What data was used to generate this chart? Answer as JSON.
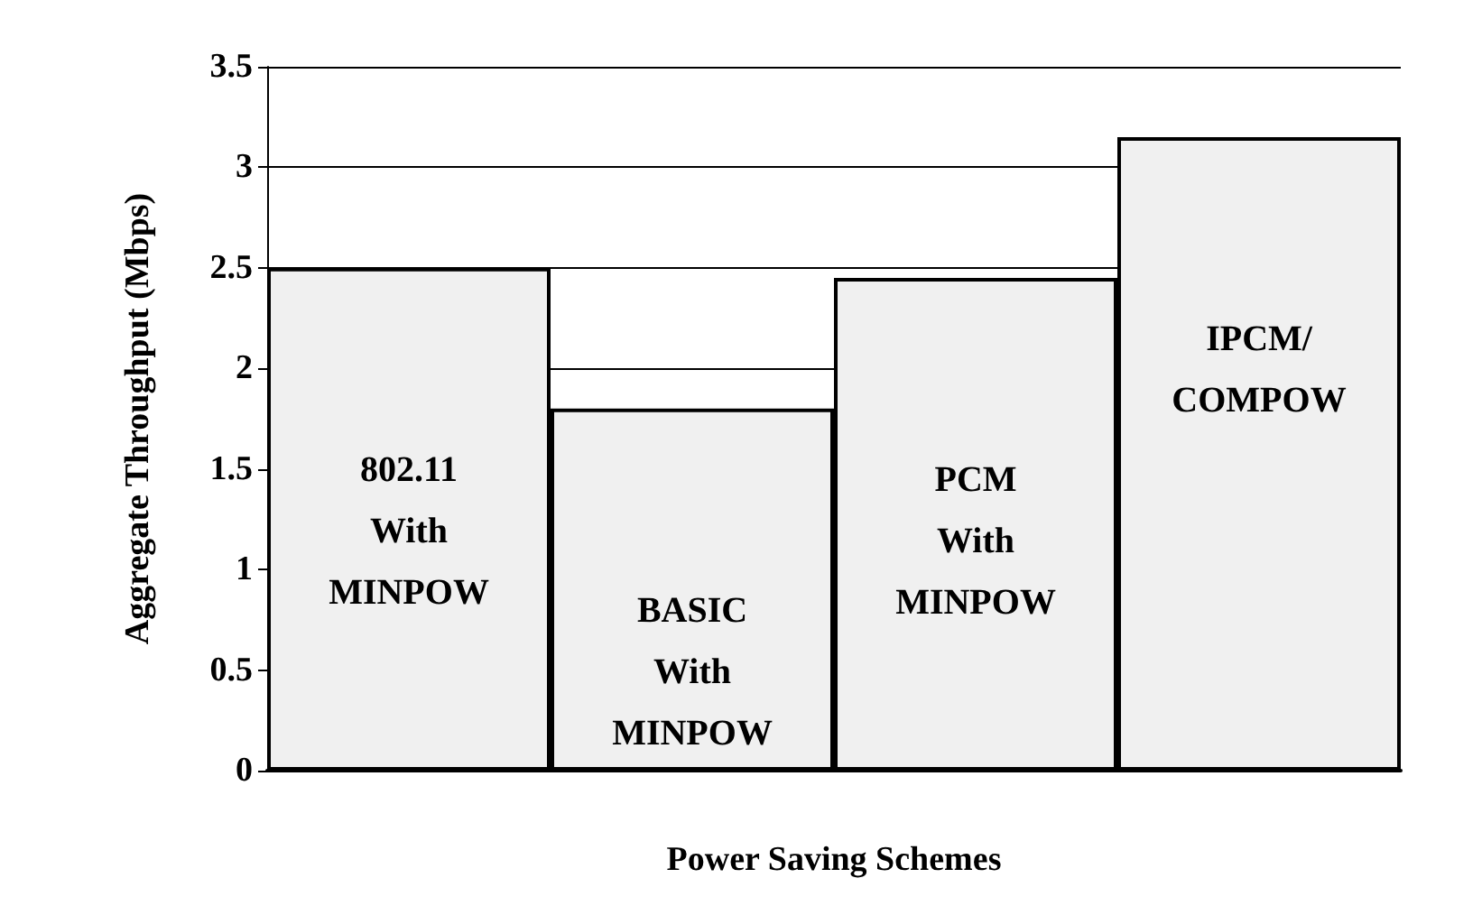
{
  "chart_data": {
    "type": "bar",
    "xlabel": "Power Saving Schemes",
    "ylabel": "Aggregate Throughput (Mbps)",
    "categories": [
      "802.11 With MINPOW",
      "BASIC With MINPOW",
      "PCM With MINPOW",
      "IPCM/ COMPOW"
    ],
    "values": [
      2.5,
      1.8,
      2.45,
      3.15
    ],
    "color": "#f0f0f0",
    "ylim": [
      0,
      3.5
    ],
    "yticks": [
      0,
      0.5,
      1,
      1.5,
      2,
      2.5,
      3,
      3.5
    ],
    "grid": "y",
    "tick_labels": "y"
  }
}
